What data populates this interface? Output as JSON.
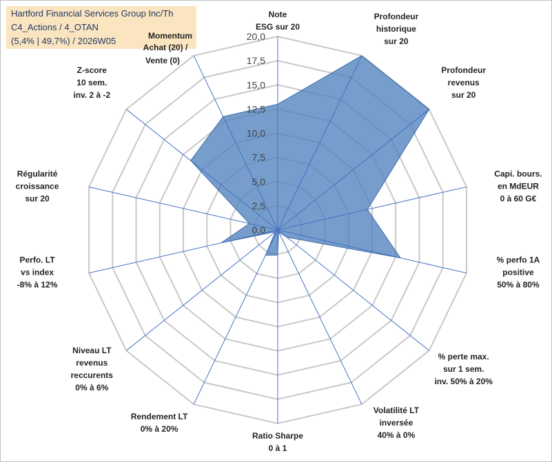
{
  "header": {
    "line1": "Hartford Financial Services  Group Inc/Th",
    "line2": "C4_Actions / 4_OTAN",
    "line3": "(5,4% | 49,7%) / 2026W05"
  },
  "chart_data": {
    "type": "radar",
    "title": "Hartford Financial Services  Group Inc/Th",
    "rmin": 0,
    "rmax": 20,
    "ticks": [
      "0,0",
      "2,5",
      "5,0",
      "7,5",
      "10,0",
      "12,5",
      "15,0",
      "17,5",
      "20,0"
    ],
    "axes": [
      {
        "lines": [
          "Note",
          "ESG sur 20"
        ],
        "value": 13.0
      },
      {
        "lines": [
          "Profondeur",
          "historique",
          "sur 20"
        ],
        "value": 20.0
      },
      {
        "lines": [
          "Profondeur",
          "revenus",
          "sur 20"
        ],
        "value": 20.0
      },
      {
        "lines": [
          "Capi. bours.",
          "en MdEUR",
          "0 à 60 G€"
        ],
        "value": 9.5
      },
      {
        "lines": [
          "% perfo 1A",
          "positive",
          "50% à 80%"
        ],
        "value": 13.0
      },
      {
        "lines": [
          "% perte max.",
          "sur 1 sem.",
          "inv. 50% à 20%"
        ],
        "value": 1.2
      },
      {
        "lines": [
          "Volatilité LT",
          "inversée",
          "40% à 0%"
        ],
        "value": 0.2
      },
      {
        "lines": [
          "Ratio Sharpe",
          "0 à 1"
        ],
        "value": 2.6
      },
      {
        "lines": [
          "Rendement LT",
          "0% à 20%"
        ],
        "value": 2.9
      },
      {
        "lines": [
          "Niveau LT",
          "revenus",
          "reccurents",
          "0% à 6%"
        ],
        "value": 0.3
      },
      {
        "lines": [
          "Perfo. LT",
          "vs index",
          "-8% à 12%"
        ],
        "value": 6.0
      },
      {
        "lines": [
          "Régularité",
          "croissance",
          "sur 20"
        ],
        "value": 3.0
      },
      {
        "lines": [
          "Z-score",
          "10 sem.",
          "inv. 2 à -2"
        ],
        "value": 11.5
      },
      {
        "lines": [
          "Momentum",
          "Achat (20) /",
          "Vente (0)"
        ],
        "value": 13.0
      }
    ],
    "series_color": "#4f81bd",
    "grid_color": "#c8c8c8",
    "axis_color": "#4472c4"
  }
}
